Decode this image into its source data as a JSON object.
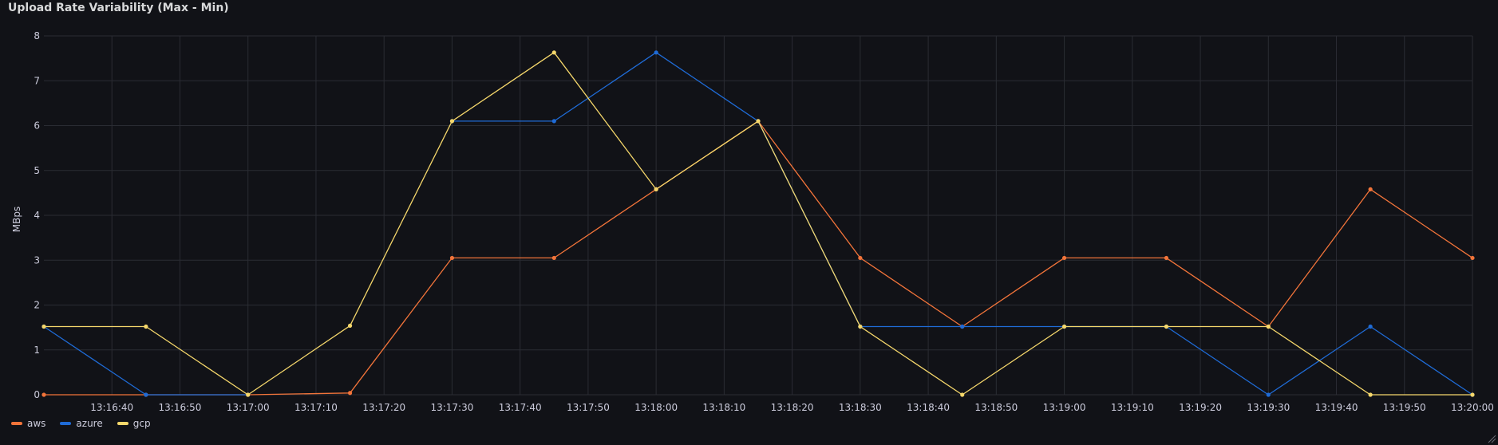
{
  "panel": {
    "title": "Upload Rate Variability (Max - Min)"
  },
  "chart_data": {
    "type": "line",
    "title": "Upload Rate Variability (Max - Min)",
    "ylabel": "MBps",
    "xlabel": "",
    "ylim": [
      0,
      8
    ],
    "yticks": [
      0,
      1,
      2,
      3,
      4,
      5,
      6,
      7,
      8
    ],
    "xlim": [
      "13:16:30",
      "13:20:00"
    ],
    "xticks": [
      "13:16:40",
      "13:16:50",
      "13:17:00",
      "13:17:10",
      "13:17:20",
      "13:17:30",
      "13:17:40",
      "13:17:50",
      "13:18:00",
      "13:18:10",
      "13:18:20",
      "13:18:30",
      "13:18:40",
      "13:18:50",
      "13:19:00",
      "13:19:10",
      "13:19:20",
      "13:19:30",
      "13:19:40",
      "13:19:50",
      "13:20:00"
    ],
    "grid": true,
    "legend": "bottom-left",
    "x": [
      "13:16:30",
      "13:16:45",
      "13:17:00",
      "13:17:15",
      "13:17:30",
      "13:17:45",
      "13:18:00",
      "13:18:15",
      "13:18:30",
      "13:18:45",
      "13:19:00",
      "13:19:15",
      "13:19:30",
      "13:19:45",
      "13:20:00"
    ],
    "series": [
      {
        "name": "aws",
        "color": "#f2743a",
        "values": [
          0,
          0,
          0,
          0.04,
          3.05,
          3.05,
          4.58,
          6.1,
          3.05,
          1.52,
          3.05,
          3.05,
          1.52,
          4.58,
          3.05
        ]
      },
      {
        "name": "azure",
        "color": "#1f6bd6",
        "values": [
          1.52,
          0,
          0,
          null,
          6.1,
          6.1,
          7.63,
          6.1,
          1.52,
          1.52,
          1.52,
          1.52,
          0,
          1.52,
          0
        ]
      },
      {
        "name": "gcp",
        "color": "#f5d76b",
        "values": [
          1.52,
          1.52,
          0,
          1.54,
          6.1,
          7.63,
          4.58,
          6.1,
          1.52,
          0,
          1.52,
          1.52,
          1.52,
          0,
          0
        ]
      }
    ]
  },
  "legend": {
    "items": [
      {
        "label": "aws",
        "color": "#f2743a"
      },
      {
        "label": "azure",
        "color": "#1f6bd6"
      },
      {
        "label": "gcp",
        "color": "#f5d76b"
      }
    ]
  },
  "icons": {
    "resize": "resize-handle-icon"
  }
}
